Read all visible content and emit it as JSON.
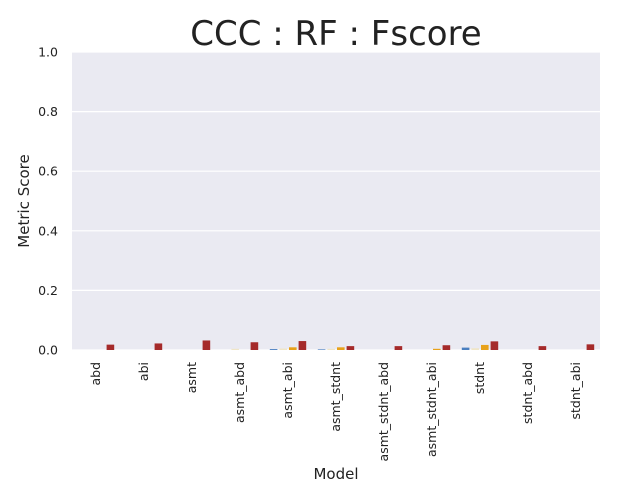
{
  "chart_data": {
    "type": "bar",
    "title": "CCC : RF : Fscore",
    "xlabel": "Model",
    "ylabel": "Metric Score",
    "ylim": [
      0,
      1.0
    ],
    "yticks": [
      "0.0",
      "0.2",
      "0.4",
      "0.6",
      "0.8",
      "1.0"
    ],
    "categories": [
      "abd",
      "abi",
      "asmt",
      "asmt_abd",
      "asmt_abi",
      "asmt_stdnt",
      "asmt_stdnt_abd",
      "asmt_stdnt_abi",
      "stdnt",
      "stdnt_abd",
      "stdnt_abi"
    ],
    "series": [
      {
        "color": "#4a7fc0",
        "values": [
          0.0,
          0.0,
          0.0,
          0.0,
          0.003,
          0.002,
          0.0,
          0.0,
          0.008,
          0.0,
          0.0
        ]
      },
      {
        "color": "#f0e6c8",
        "values": [
          0.0,
          0.0,
          0.0,
          0.004,
          0.005,
          0.004,
          0.0,
          0.0,
          0.006,
          0.0,
          0.0
        ]
      },
      {
        "color": "#e8a21a",
        "values": [
          0.0,
          0.0,
          0.0,
          0.0,
          0.009,
          0.009,
          0.0,
          0.004,
          0.017,
          0.0,
          0.0
        ]
      },
      {
        "color": "#a52a2a",
        "values": [
          0.018,
          0.022,
          0.032,
          0.026,
          0.03,
          0.013,
          0.013,
          0.016,
          0.029,
          0.013,
          0.019
        ]
      }
    ],
    "grid": true,
    "background": "#eaeaf2"
  }
}
